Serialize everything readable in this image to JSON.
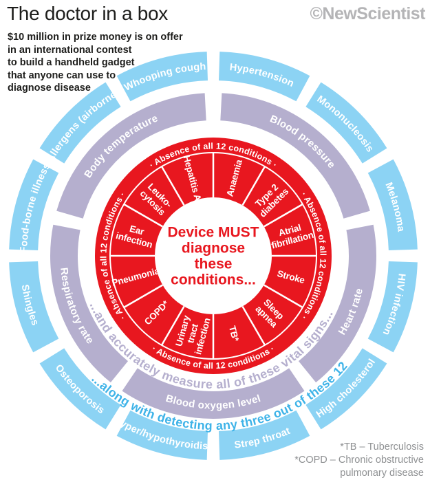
{
  "header": {
    "title": "The doctor in a box",
    "subtitle_lines": [
      "$10 million in prize money is on offer",
      "in an international contest",
      "to build a handheld gadget",
      "that anyone can use to",
      "diagnose disease"
    ],
    "brand": "©NewScientist"
  },
  "footnote_lines": [
    "*TB – Tuberculosis",
    "*COPD – Chronic obstructive",
    "pulmonary disease"
  ],
  "colors": {
    "red": "#e8171f",
    "purple": "#b5afce",
    "blue": "#8cd3f4",
    "blue_text": "#3eb3e8",
    "white": "#ffffff",
    "dark": "#1d1d1b"
  },
  "center_label_lines": [
    "Device MUST",
    "diagnose",
    "these",
    "conditions..."
  ],
  "conditions_ring": {
    "absence_label": "· Absence of all 12 conditions ·",
    "absence_positions": [
      {
        "position": "top",
        "angle": 0,
        "orient": "out"
      },
      {
        "position": "right",
        "angle": 90,
        "orient": "out"
      },
      {
        "position": "bottom",
        "angle": 180,
        "orient": "in"
      },
      {
        "position": "left",
        "angle": 270,
        "orient": "out"
      }
    ],
    "wedges": [
      {
        "angle": 15,
        "label_lines": [
          "Anaemia"
        ]
      },
      {
        "angle": 45,
        "label_lines": [
          "Type 2",
          "diabetes"
        ]
      },
      {
        "angle": 75,
        "label_lines": [
          "Atrial",
          "fibrillation"
        ]
      },
      {
        "angle": 105,
        "label_lines": [
          "Stroke"
        ]
      },
      {
        "angle": 135,
        "label_lines": [
          "Sleep",
          "apnea"
        ]
      },
      {
        "angle": 165,
        "label_lines": [
          "TB*"
        ]
      },
      {
        "angle": 195,
        "label_lines": [
          "Urinary",
          "tract",
          "infection"
        ]
      },
      {
        "angle": 225,
        "label_lines": [
          "COPD*"
        ]
      },
      {
        "angle": 255,
        "label_lines": [
          "Pneumonia"
        ]
      },
      {
        "angle": 285,
        "label_lines": [
          "Ear",
          "infection"
        ]
      },
      {
        "angle": 315,
        "label_lines": [
          "Leuko-",
          "cytosis"
        ]
      },
      {
        "angle": 345,
        "label_lines": [
          "Hepatitis A"
        ]
      }
    ]
  },
  "vitals_ring": {
    "annotation": "...and accurately measure all of these vital signs...",
    "segments": [
      {
        "label": "Blood pressure",
        "start": 3,
        "end": 74,
        "label_angle": 38,
        "orient": "out"
      },
      {
        "label": "Heart rate",
        "start": 79,
        "end": 141,
        "label_angle": 112,
        "orient": "in"
      },
      {
        "label": "Blood oxygen level",
        "start": 146,
        "end": 214,
        "label_angle": 180,
        "orient": "in"
      },
      {
        "label": "Respiratory rate",
        "start": 219,
        "end": 281,
        "label_angle": 250,
        "orient": "in"
      },
      {
        "label": "Body temperature",
        "start": 286,
        "end": 357,
        "label_angle": 320,
        "orient": "out"
      }
    ]
  },
  "detect_ring": {
    "annotation": "...along with detecting any three out of these 12",
    "segments": [
      {
        "label": "Hypertension",
        "angle": 15,
        "orient": "out"
      },
      {
        "label": "Mononucleosis",
        "angle": 45,
        "orient": "out"
      },
      {
        "label": "Melanoma",
        "angle": 75,
        "orient": "out"
      },
      {
        "label": "HIV infection",
        "angle": 105,
        "orient": "out"
      },
      {
        "label": "High cholesterol",
        "angle": 135,
        "orient": "in"
      },
      {
        "label": "Strep throat",
        "angle": 165,
        "orient": "in"
      },
      {
        "label": "Hyper/hypothyroidism",
        "angle": 195,
        "orient": "in"
      },
      {
        "label": "Osteoporosis",
        "angle": 225,
        "orient": "in"
      },
      {
        "label": "Shingles",
        "angle": 255,
        "orient": "in"
      },
      {
        "label": "Food-borne illness",
        "angle": 285,
        "orient": "out"
      },
      {
        "label": "Allergens (airborne)",
        "angle": 315,
        "orient": "out"
      },
      {
        "label": "Whooping cough",
        "angle": 345,
        "orient": "out"
      }
    ]
  }
}
